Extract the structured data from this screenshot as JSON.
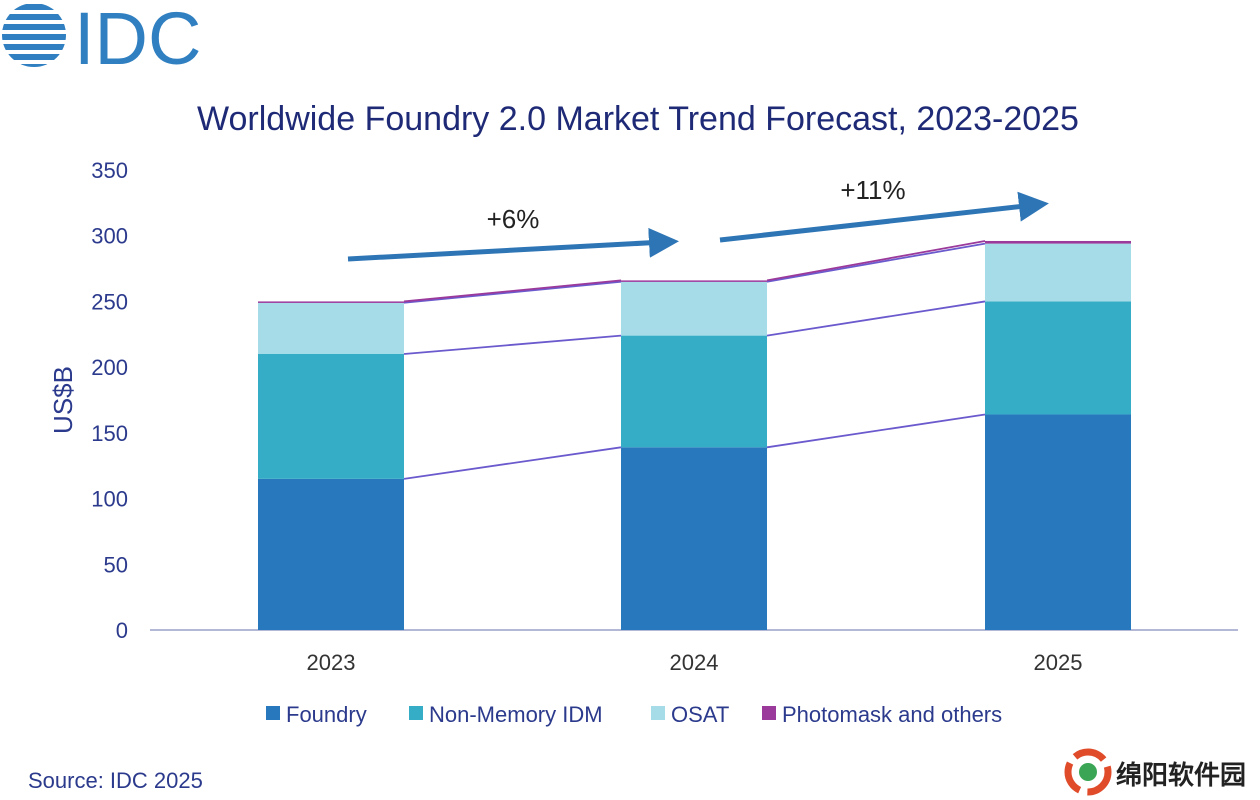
{
  "logo_text": "IDC",
  "source_text": "Source: IDC 2025",
  "watermark_text": "绵阳软件园",
  "colors": {
    "title": "#1f2a77",
    "axis_text": "#2b3a8c",
    "arrow": "#2e75b6",
    "connector": "#6a5acd"
  },
  "chart_data": {
    "type": "bar",
    "stacked": true,
    "title": "Worldwide Foundry 2.0 Market Trend Forecast, 2023-2025",
    "ylabel": "US$B",
    "xlabel": "",
    "ylim": [
      0,
      350
    ],
    "yticks": [
      0,
      50,
      100,
      150,
      200,
      250,
      300,
      350
    ],
    "categories": [
      "2023",
      "2024",
      "2025"
    ],
    "series": [
      {
        "name": "Foundry",
        "color": "#2878bd",
        "values": [
          115,
          139,
          164
        ]
      },
      {
        "name": "Non-Memory IDM",
        "color": "#36adc7",
        "values": [
          95,
          85,
          86
        ]
      },
      {
        "name": "OSAT",
        "color": "#a6dbe8",
        "values": [
          39,
          41,
          44
        ]
      },
      {
        "name": "Photomask and others",
        "color": "#9b3a9b",
        "values": [
          1,
          1,
          2
        ]
      }
    ],
    "annotations": [
      {
        "label": "+6%",
        "from": "2023",
        "to": "2024"
      },
      {
        "label": "+11%",
        "from": "2024",
        "to": "2025"
      }
    ],
    "legend_position": "bottom",
    "grid": false
  }
}
